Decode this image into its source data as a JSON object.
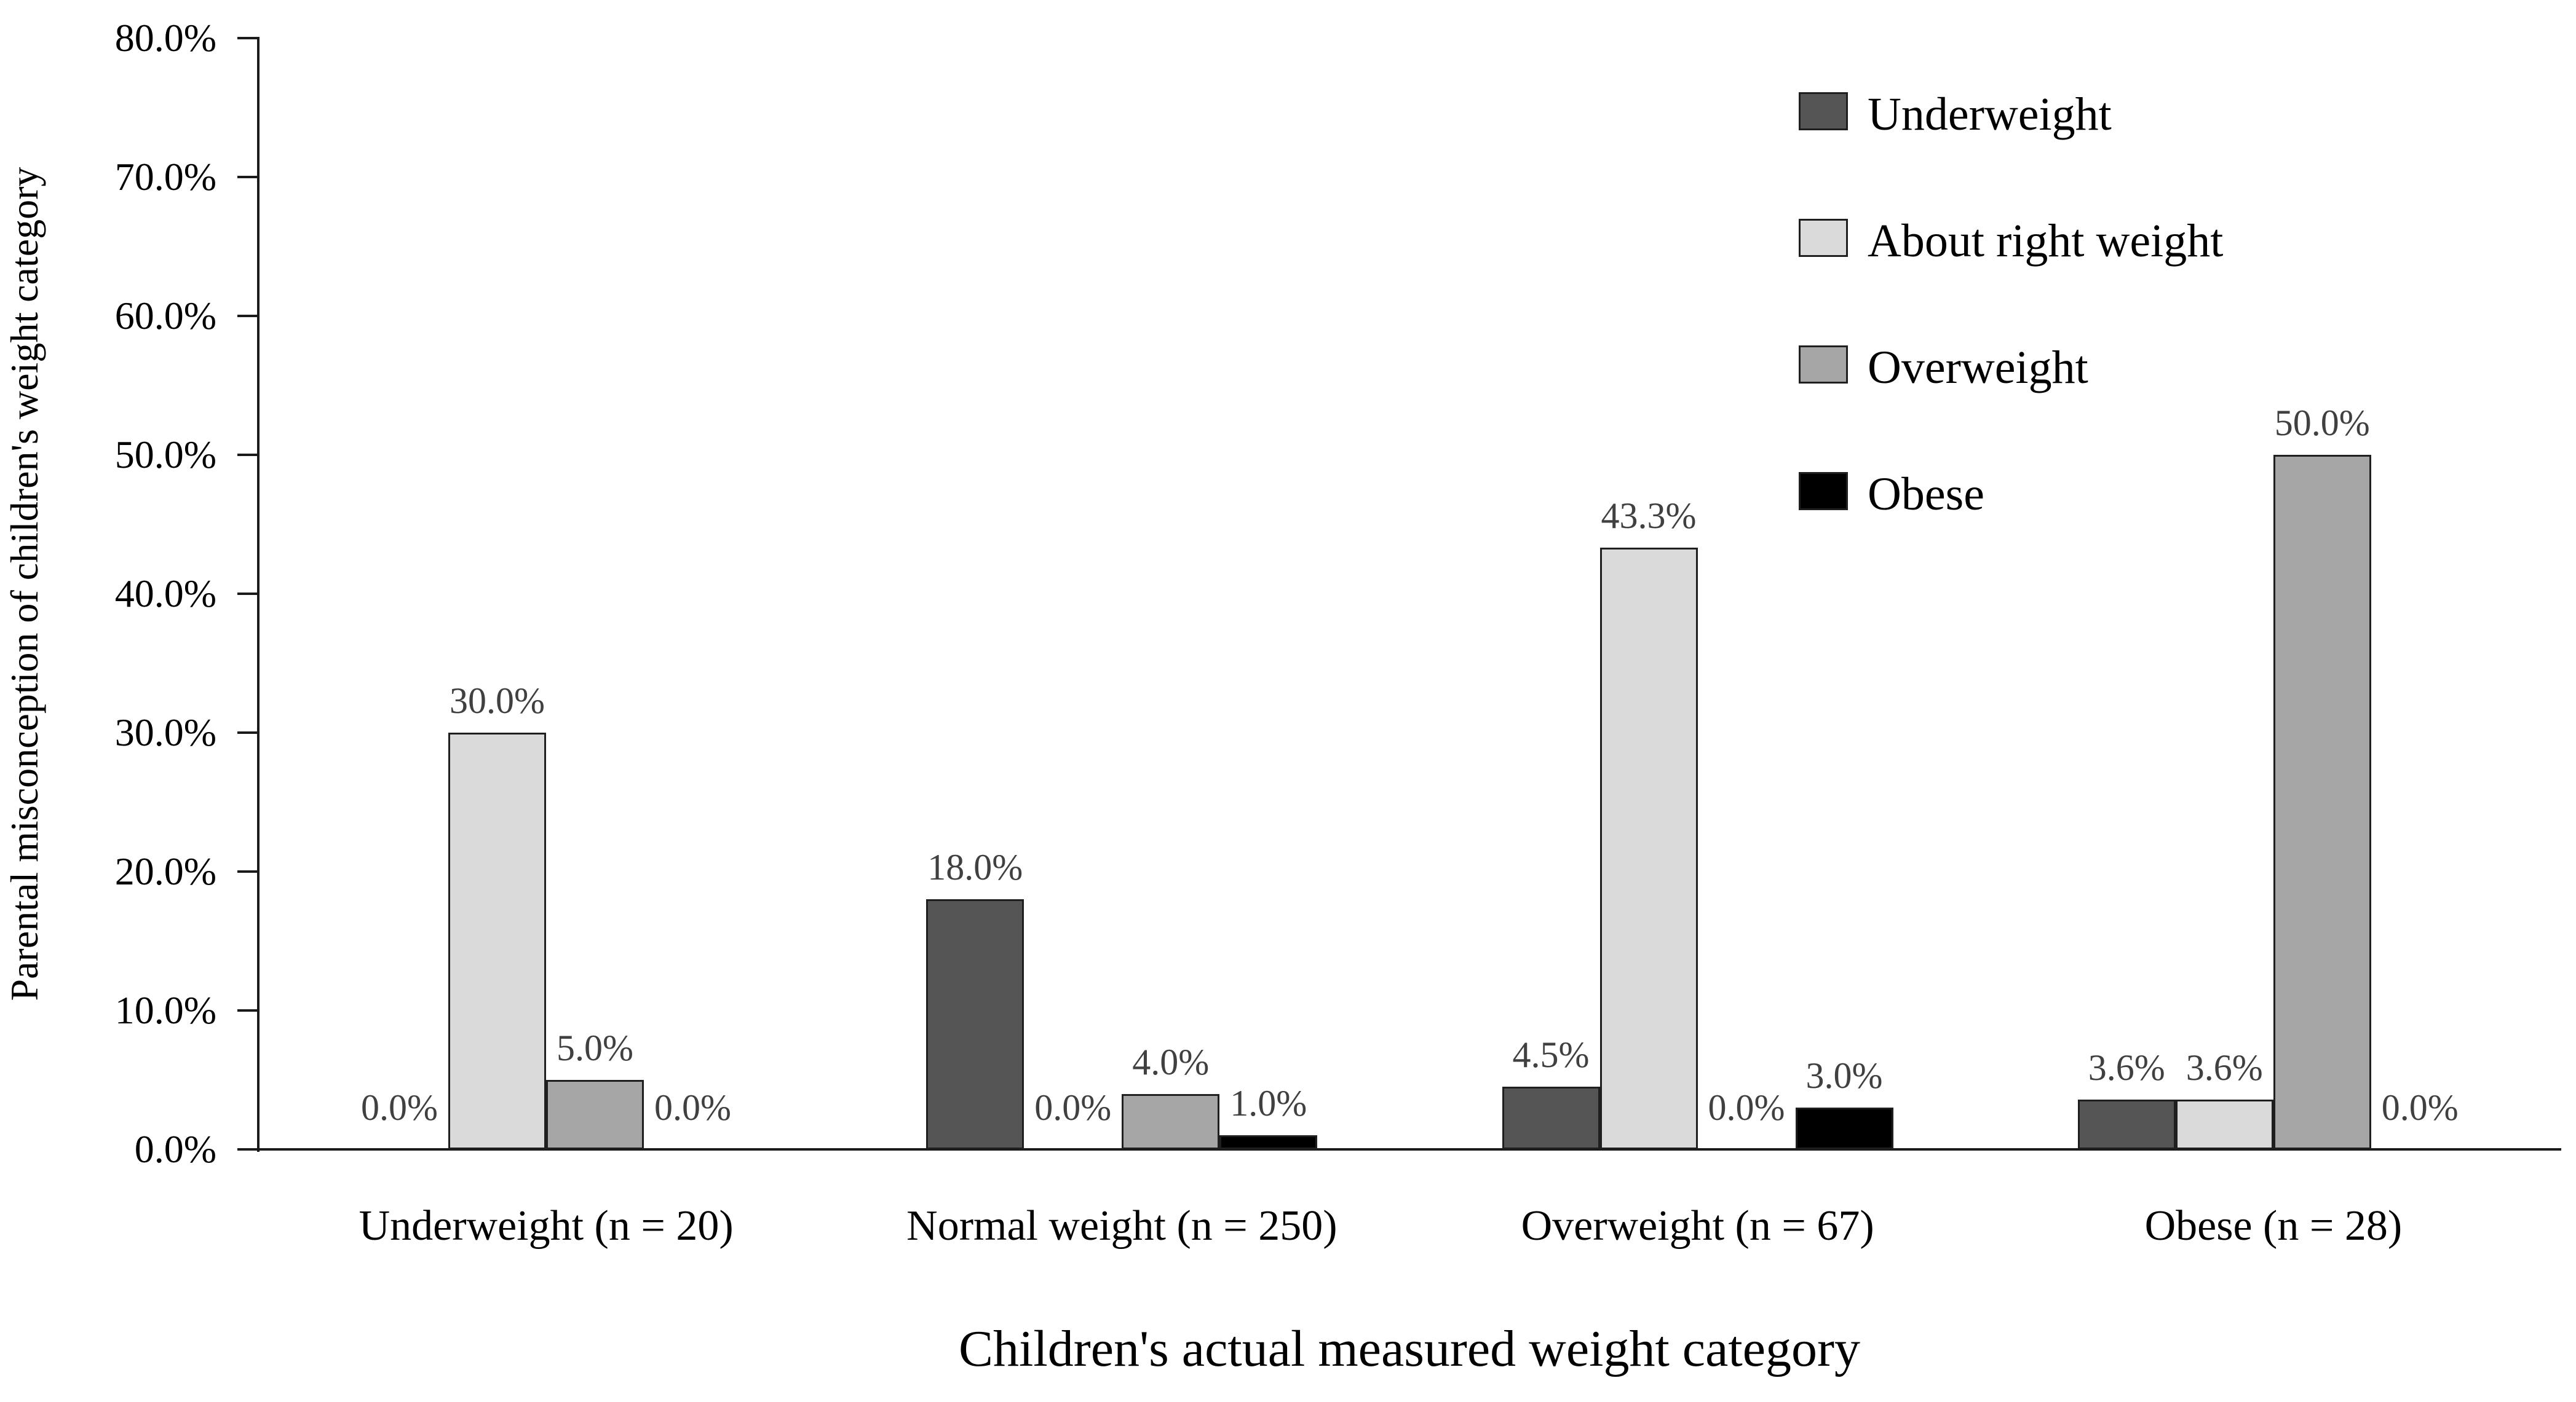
{
  "chart_data": {
    "type": "bar",
    "title": "",
    "xlabel": "Children's actual measured weight category",
    "ylabel": "Parental misconception of children's weight category",
    "categories": [
      "Underweight (n = 20)",
      "Normal weight (n = 250)",
      "Overweight (n = 67)",
      "Obese (n = 28)"
    ],
    "series": [
      {
        "name": "Underweight",
        "color": "#555555",
        "values": [
          0.0,
          18.0,
          4.5,
          3.6
        ]
      },
      {
        "name": "About right weight",
        "color": "#dadada",
        "values": [
          30.0,
          0.0,
          43.3,
          3.6
        ]
      },
      {
        "name": "Overweight",
        "color": "#a6a6a6",
        "values": [
          5.0,
          4.0,
          0.0,
          50.0
        ]
      },
      {
        "name": "Obese",
        "color": "#000000",
        "values": [
          0.0,
          1.0,
          3.0,
          0.0
        ]
      }
    ],
    "data_labels": [
      [
        "0.0%",
        "18.0%",
        "4.5%",
        "3.6%"
      ],
      [
        "30.0%",
        "0.0%",
        "43.3%",
        "3.6%"
      ],
      [
        "5.0%",
        "4.0%",
        "0.0%",
        "50.0%"
      ],
      [
        "0.0%",
        "1.0%",
        "3.0%",
        "0.0%"
      ]
    ],
    "y_axis": {
      "min": 0,
      "max": 80,
      "step": 10,
      "tick_labels": [
        "0.0%",
        "10.0%",
        "20.0%",
        "30.0%",
        "40.0%",
        "50.0%",
        "60.0%",
        "70.0%",
        "80.0%"
      ]
    },
    "legend": {
      "position": "top-right",
      "entries": [
        "Underweight",
        "About right weight",
        "Overweight",
        "Obese"
      ]
    },
    "grid": false,
    "label_color": "#404040",
    "axis_color": "#1a1a1a"
  }
}
